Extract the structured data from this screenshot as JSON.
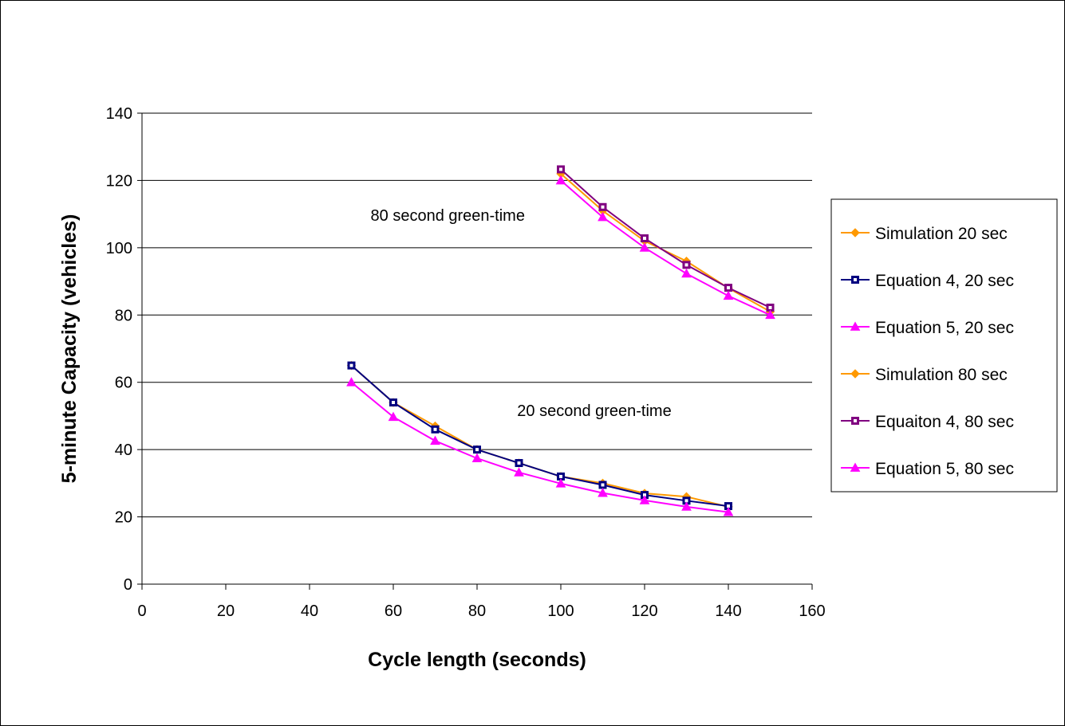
{
  "chart_data": {
    "type": "line",
    "xlabel": "Cycle length (seconds)",
    "ylabel": "5-minute Capacity (vehicles)",
    "xlim": [
      0,
      160
    ],
    "ylim": [
      0,
      140
    ],
    "x_ticks": [
      "0",
      "20",
      "40",
      "60",
      "80",
      "100",
      "120",
      "140",
      "160"
    ],
    "y_ticks": [
      "0",
      "20",
      "40",
      "60",
      "80",
      "100",
      "120",
      "140"
    ],
    "grid": "horizontal",
    "legend_position": "right",
    "annotations": [
      {
        "text": "80 second green-time",
        "x": 73,
        "y": 108
      },
      {
        "text": "20 second green-time",
        "x": 108,
        "y": 50
      }
    ],
    "series": [
      {
        "name": "Simulation 20 sec",
        "color": "#FF9900",
        "marker": "diamond",
        "x": [
          50,
          60,
          70,
          80,
          90,
          100,
          110,
          120,
          130,
          140
        ],
        "y": [
          65,
          54,
          47,
          40,
          36,
          32,
          30,
          27,
          26,
          23
        ]
      },
      {
        "name": "Equation 4, 20 sec",
        "color": "#000080",
        "marker": "square",
        "x": [
          50,
          60,
          70,
          80,
          90,
          100,
          110,
          120,
          130,
          140
        ],
        "y": [
          65,
          54,
          46,
          40,
          36,
          32,
          29.5,
          26.5,
          24.8,
          23.2
        ]
      },
      {
        "name": "Equation 5, 20 sec",
        "color": "#FF00FF",
        "marker": "triangle",
        "x": [
          50,
          60,
          70,
          80,
          90,
          100,
          110,
          120,
          130,
          140
        ],
        "y": [
          60,
          49.7,
          42.6,
          37.4,
          33.2,
          29.9,
          27.1,
          24.9,
          23,
          21.4
        ]
      },
      {
        "name": "Simulation 80 sec",
        "color": "#FF9900",
        "marker": "diamond",
        "x": [
          100,
          110,
          120,
          130,
          140,
          150
        ],
        "y": [
          122,
          111,
          102,
          96,
          88,
          81
        ]
      },
      {
        "name": "Equaiton 4, 80 sec",
        "color": "#800080",
        "marker": "square",
        "x": [
          100,
          110,
          120,
          130,
          140,
          150
        ],
        "y": [
          123.3,
          112.1,
          102.8,
          94.9,
          88.1,
          82.2
        ]
      },
      {
        "name": "Equation 5, 80 sec",
        "color": "#FF00FF",
        "marker": "triangle",
        "x": [
          100,
          110,
          120,
          130,
          140,
          150
        ],
        "y": [
          120,
          109.1,
          100,
          92.3,
          85.7,
          80
        ]
      }
    ]
  }
}
